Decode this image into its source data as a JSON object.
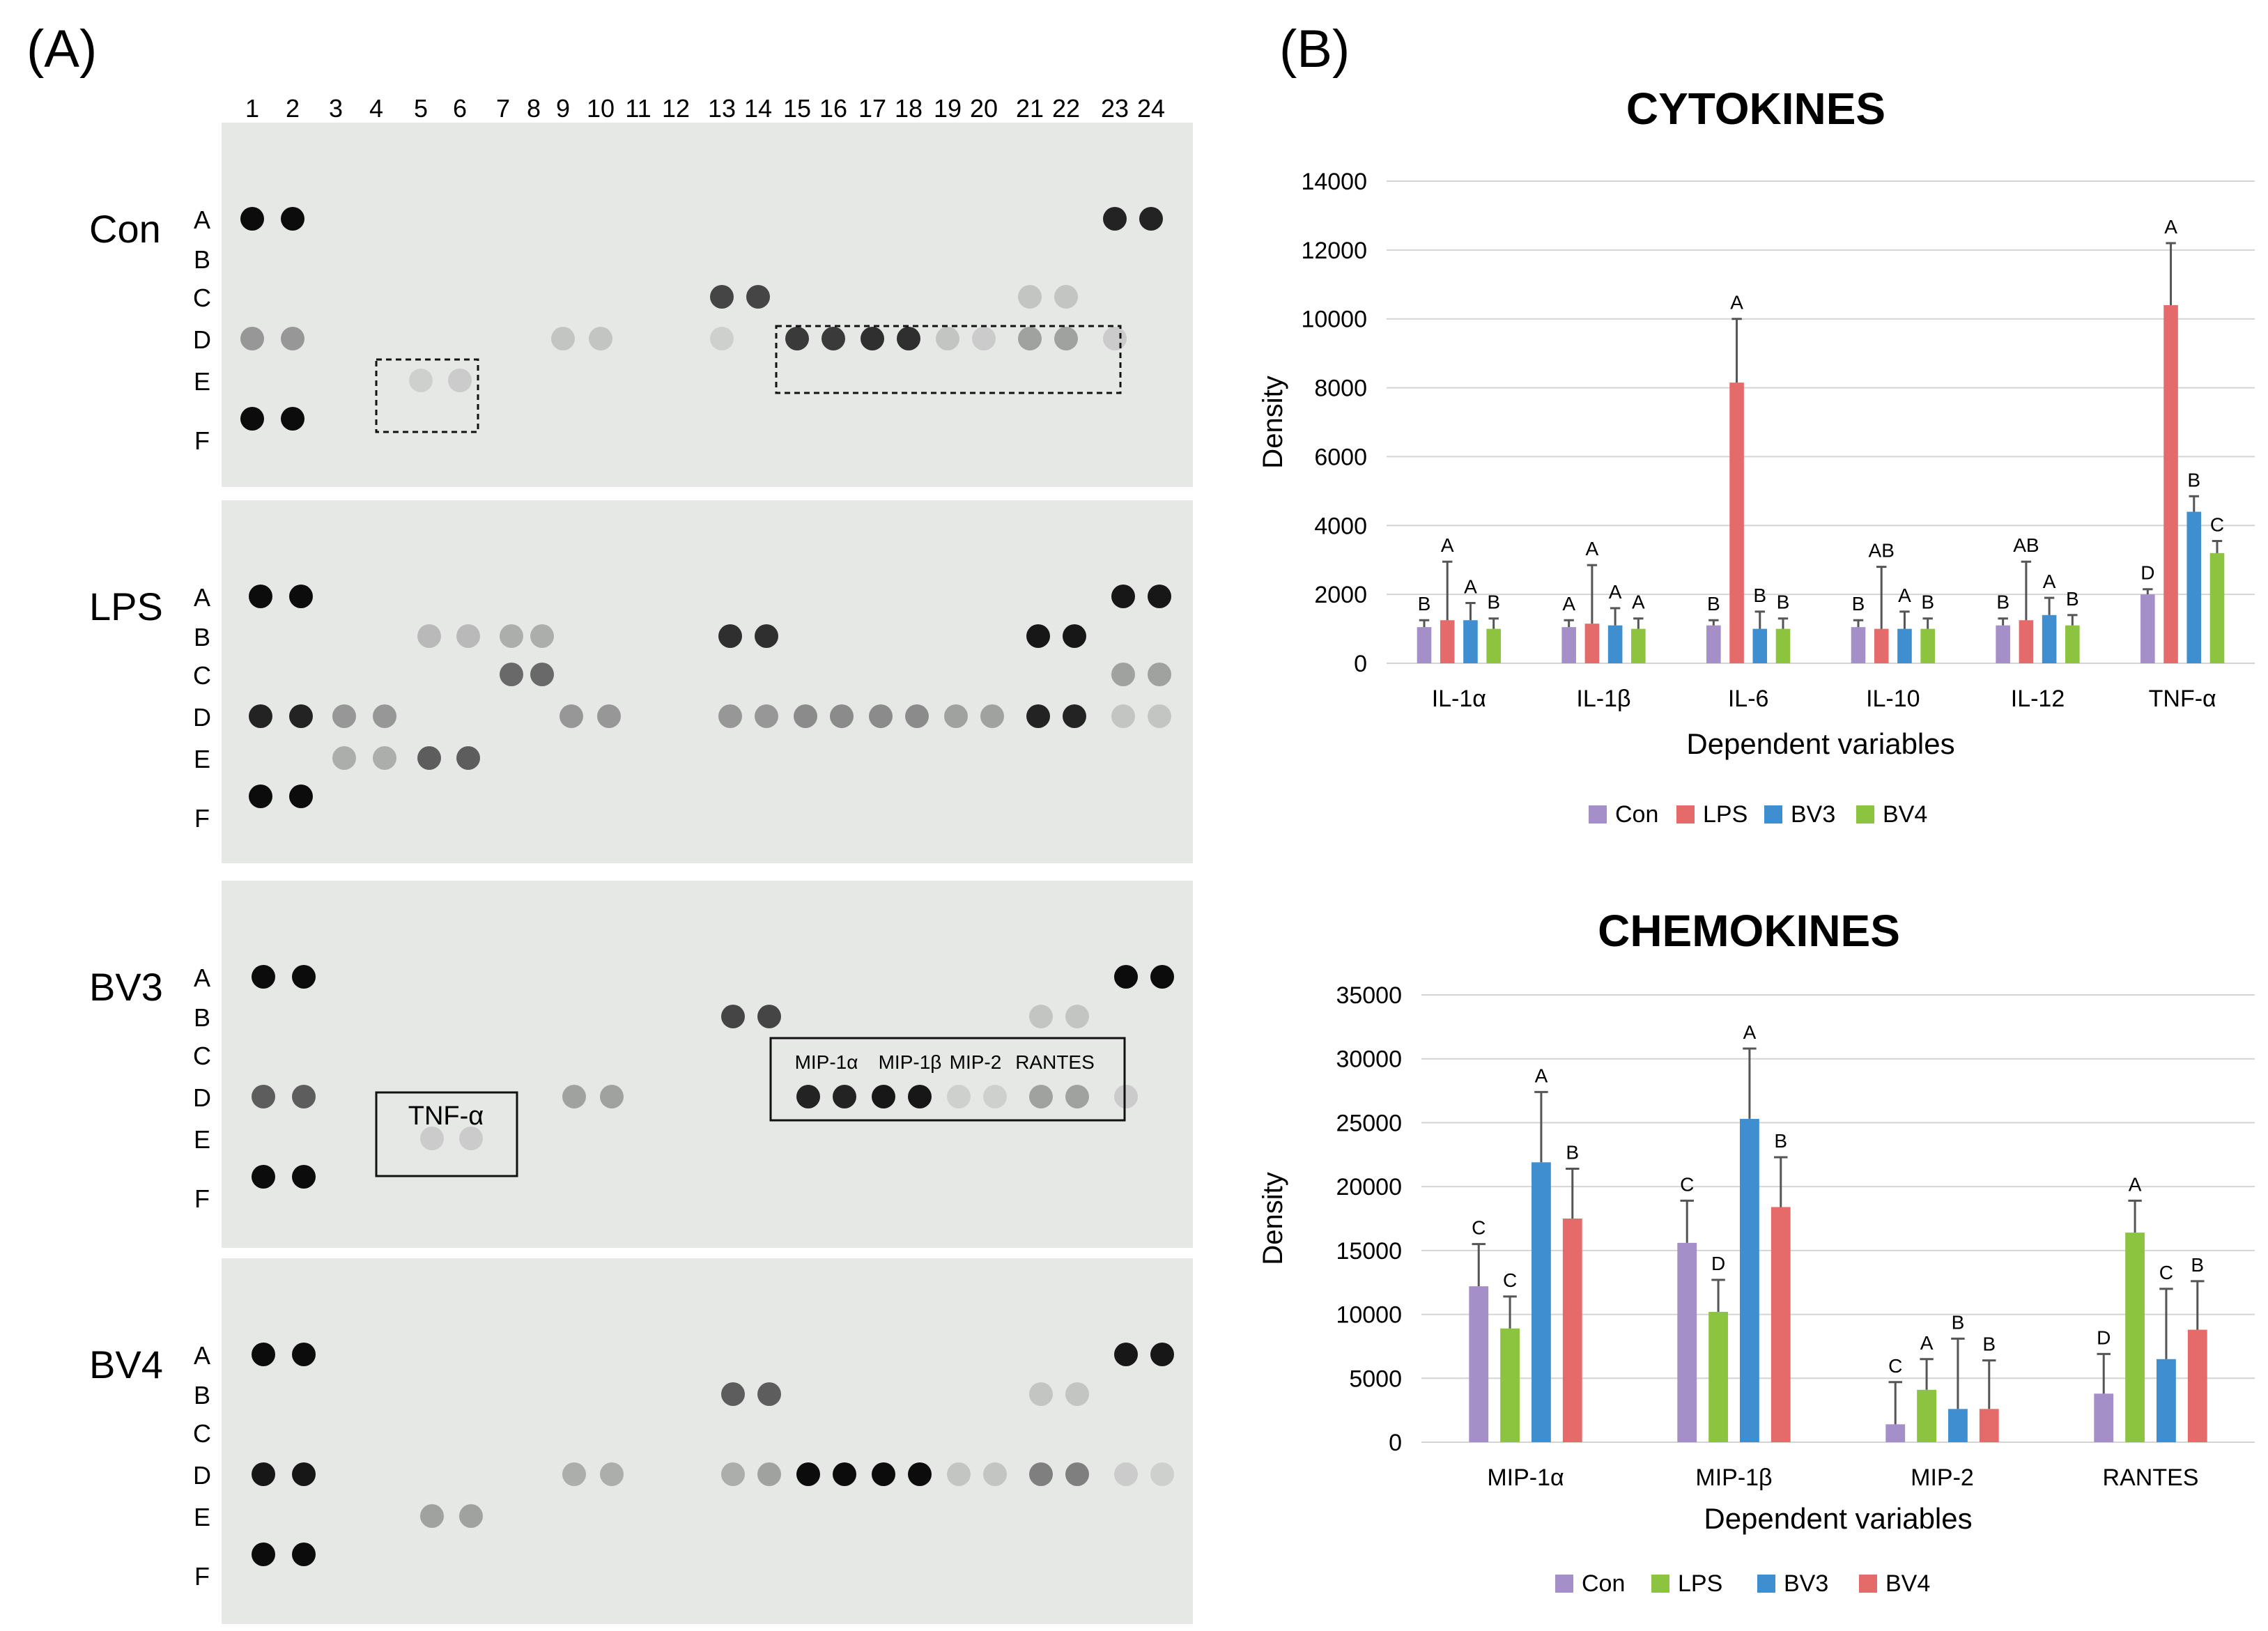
{
  "panel_a": {
    "label": "(A)",
    "column_numbers": [
      "1",
      "2",
      "3",
      "4",
      "5",
      "6",
      "7",
      "8",
      "9",
      "10",
      "11",
      "12",
      "13",
      "14",
      "15",
      "16",
      "17",
      "18",
      "19",
      "20",
      "21",
      "22",
      "23",
      "24"
    ],
    "row_letters": [
      "A",
      "B",
      "C",
      "D",
      "E",
      "F"
    ],
    "membranes": [
      {
        "name": "Con",
        "box_label": "",
        "spot_labels": []
      },
      {
        "name": "LPS",
        "box_label": "",
        "spot_labels": []
      },
      {
        "name": "BV3",
        "box_label": "TNF-α",
        "spot_labels": [
          "MIP-1α",
          "MIP-1β",
          "MIP-2",
          "RANTES"
        ]
      },
      {
        "name": "BV4",
        "box_label": "",
        "spot_labels": []
      }
    ]
  },
  "panel_b": {
    "label": "(B)"
  },
  "chart_data": [
    {
      "type": "bar",
      "title": "CYTOKINES",
      "xlabel": "Dependent variables",
      "ylabel": "Density",
      "ylim": [
        0,
        14000
      ],
      "yticks": [
        "0",
        "2000",
        "4000",
        "6000",
        "8000",
        "10000",
        "12000",
        "14000"
      ],
      "categories": [
        "IL-1α",
        "IL-1β",
        "IL-6",
        "IL-10",
        "IL-12",
        "TNF-α"
      ],
      "series": [
        {
          "name": "Con",
          "color": "#a58fc8",
          "values": [
            1050,
            1050,
            1100,
            1050,
            1100,
            2000
          ],
          "errors": [
            200,
            200,
            150,
            200,
            200,
            150
          ],
          "letters": [
            "B",
            "A",
            "B",
            "B",
            "B",
            "D"
          ]
        },
        {
          "name": "LPS",
          "color": "#e56a6a",
          "values": [
            1250,
            1150,
            8150,
            1000,
            1250,
            10400
          ],
          "errors": [
            1700,
            1700,
            1850,
            1800,
            1700,
            1800
          ],
          "letters": [
            "A",
            "A",
            "A",
            "AB",
            "AB",
            "A"
          ]
        },
        {
          "name": "BV3",
          "color": "#3f8ecf",
          "values": [
            1250,
            1100,
            1000,
            1000,
            1400,
            4400
          ],
          "errors": [
            500,
            500,
            500,
            500,
            500,
            450
          ],
          "letters": [
            "A",
            "A",
            "B",
            "A",
            "A",
            "B"
          ]
        },
        {
          "name": "BV4",
          "color": "#8cc43f",
          "values": [
            1000,
            1000,
            1000,
            1000,
            1100,
            3200
          ],
          "errors": [
            300,
            300,
            300,
            300,
            300,
            350
          ],
          "letters": [
            "B",
            "A",
            "B",
            "B",
            "B",
            "C"
          ]
        }
      ],
      "legend_position": "bottom"
    },
    {
      "type": "bar",
      "title": "CHEMOKINES",
      "xlabel": "Dependent variables",
      "ylabel": "Density",
      "ylim": [
        0,
        35000
      ],
      "yticks": [
        "0",
        "5000",
        "10000",
        "15000",
        "20000",
        "25000",
        "30000",
        "35000"
      ],
      "categories": [
        "MIP-1α",
        "MIP-1β",
        "MIP-2",
        "RANTES"
      ],
      "series": [
        {
          "name": "Con",
          "color": "#a58fc8",
          "values": [
            12200,
            15600,
            1400,
            3800
          ],
          "errors": [
            3300,
            3300,
            3300,
            3100
          ],
          "letters": [
            "C",
            "C",
            "C",
            "D"
          ]
        },
        {
          "name": "LPS",
          "color": "#8cc43f",
          "values": [
            8900,
            10200,
            4100,
            16400
          ],
          "errors": [
            2500,
            2500,
            2400,
            2500
          ],
          "letters": [
            "C",
            "D",
            "A",
            "A"
          ]
        },
        {
          "name": "BV3",
          "color": "#3f8ecf",
          "values": [
            21900,
            25300,
            2600,
            6500
          ],
          "errors": [
            5500,
            5500,
            5500,
            5500
          ],
          "letters": [
            "A",
            "A",
            "B",
            "C"
          ]
        },
        {
          "name": "BV4",
          "color": "#e56a6a",
          "values": [
            17500,
            18400,
            2600,
            8800
          ],
          "errors": [
            3900,
            3900,
            3800,
            3800
          ],
          "letters": [
            "B",
            "B",
            "B",
            "B"
          ]
        }
      ],
      "legend_position": "bottom"
    }
  ]
}
